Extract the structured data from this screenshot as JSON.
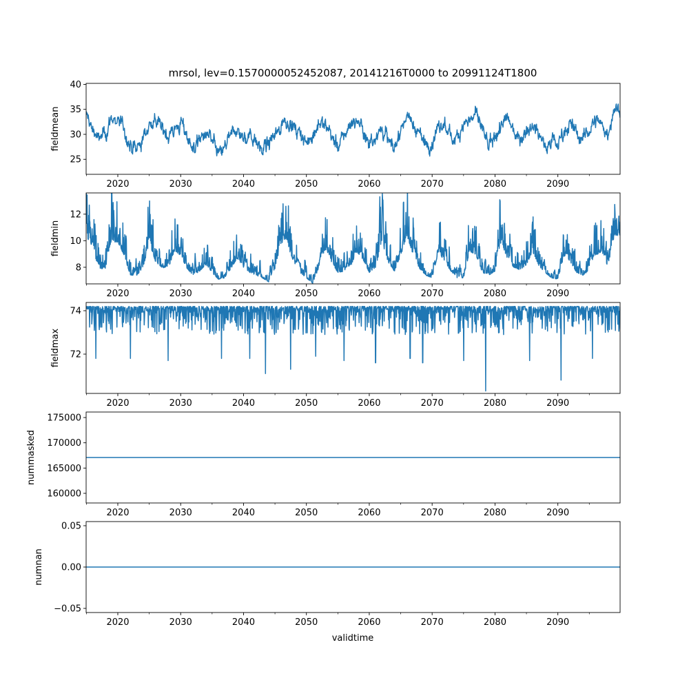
{
  "chart_data": {
    "type": "line",
    "title": "mrsol, lev=0.1570000052452087, 20141216T0000 to 20991124T1800",
    "xlabel": "validtime",
    "x_range": [
      2014.96,
      2099.9
    ],
    "x_ticks": [
      2020,
      2030,
      2040,
      2050,
      2060,
      2070,
      2080,
      2090
    ],
    "x_tick_labels": [
      "2020",
      "2030",
      "2040",
      "2050",
      "2060",
      "2070",
      "2080",
      "2090"
    ],
    "x_minor_ticks": [
      2015,
      2025,
      2035,
      2045,
      2055,
      2065,
      2075,
      2085,
      2095
    ],
    "line_color": "#1f77b4",
    "panels": [
      {
        "ylabel": "fieldmean",
        "ylim": [
          22.0,
          40.2
        ],
        "y_ticks": [
          25,
          30,
          35,
          40
        ],
        "y_tick_labels": [
          "25",
          "30",
          "35",
          "40"
        ],
        "series_kind": "noisy",
        "noise_amplitude": 3.2,
        "yearly_start": 2015,
        "yearly_level": [
          34,
          31,
          29,
          30,
          33,
          33,
          31,
          27,
          27,
          29,
          32,
          33,
          31,
          30,
          31,
          32,
          30,
          27,
          29,
          30,
          29,
          26,
          27,
          30,
          31,
          29,
          30,
          29,
          27,
          28,
          30,
          32,
          33,
          31,
          30,
          28,
          30,
          32,
          32,
          30,
          27,
          30,
          32,
          33,
          31,
          28,
          30,
          31,
          29,
          27,
          31,
          34,
          32,
          30,
          28,
          28,
          31,
          32,
          29,
          30,
          32,
          33,
          34,
          31,
          27,
          29,
          32,
          33,
          31,
          29,
          31,
          32,
          30,
          28,
          29,
          28,
          31,
          32,
          30,
          29,
          31,
          33,
          32,
          30,
          35
        ]
      },
      {
        "ylabel": "fieldmin",
        "ylim": [
          6.75,
          13.6
        ],
        "y_ticks": [
          8,
          10,
          12
        ],
        "y_tick_labels": [
          "8",
          "10",
          "12"
        ],
        "series_kind": "spiky-up",
        "noise_amplitude": 1.4,
        "yearly_start": 2015,
        "yearly_level": [
          11,
          10,
          8.5,
          8.5,
          10.5,
          10.5,
          9.5,
          8,
          8,
          8.5,
          10.5,
          9,
          8.6,
          8.5,
          9.8,
          9.5,
          8.5,
          8,
          8.3,
          8.8,
          8.2,
          7.7,
          7.8,
          8.5,
          9.3,
          8.6,
          8.2,
          8,
          7.8,
          7.5,
          8.5,
          10.5,
          10.2,
          9,
          8.2,
          7.8,
          7.4,
          8.6,
          10,
          9,
          8.2,
          8.3,
          8.6,
          9.8,
          9.2,
          8.2,
          8.6,
          10.5,
          9,
          8.3,
          9.5,
          11,
          9.5,
          8.5,
          8,
          7.8,
          9.8,
          9,
          8.3,
          7.8,
          7.8,
          9.8,
          9.5,
          8.2,
          8,
          8.3,
          10.5,
          9.2,
          8.6,
          8.4,
          8.8,
          9.8,
          8.7,
          8.2,
          7.8,
          7.7,
          9.5,
          9,
          8.2,
          8,
          8.4,
          9.5,
          9.8,
          8.6,
          11
        ]
      },
      {
        "ylabel": "fieldmax",
        "ylim": [
          70.19,
          74.38
        ],
        "y_ticks": [
          72,
          74
        ],
        "y_tick_labels": [
          "72",
          "74"
        ],
        "series_kind": "spiky-down",
        "baseline": 74.2,
        "dips": [
          [
            2016.5,
            71.8
          ],
          [
            2022,
            71.8
          ],
          [
            2028,
            71.7
          ],
          [
            2036.5,
            71.8
          ],
          [
            2041,
            71.8
          ],
          [
            2043.5,
            71.1
          ],
          [
            2047.5,
            71.3
          ],
          [
            2051.5,
            71.9
          ],
          [
            2056,
            71.7
          ],
          [
            2061,
            71.6
          ],
          [
            2066.5,
            71.8
          ],
          [
            2068.5,
            71.6
          ],
          [
            2075,
            71.7
          ],
          [
            2078.5,
            70.3
          ],
          [
            2085.5,
            71.7
          ],
          [
            2090.5,
            70.8
          ],
          [
            2095.5,
            71.8
          ]
        ]
      },
      {
        "ylabel": "nummasked",
        "ylim": [
          158090,
          176090
        ],
        "y_ticks": [
          160000,
          165000,
          170000,
          175000
        ],
        "y_tick_labels": [
          "160000",
          "165000",
          "170000",
          "175000"
        ],
        "series_kind": "constant",
        "constant": 167090
      },
      {
        "ylabel": "numnan",
        "ylim": [
          -0.055,
          0.055
        ],
        "y_ticks": [
          -0.05,
          0,
          0.05
        ],
        "y_tick_labels": [
          "−0.05",
          "0.00",
          "0.05"
        ],
        "series_kind": "constant",
        "constant": 0
      }
    ]
  }
}
